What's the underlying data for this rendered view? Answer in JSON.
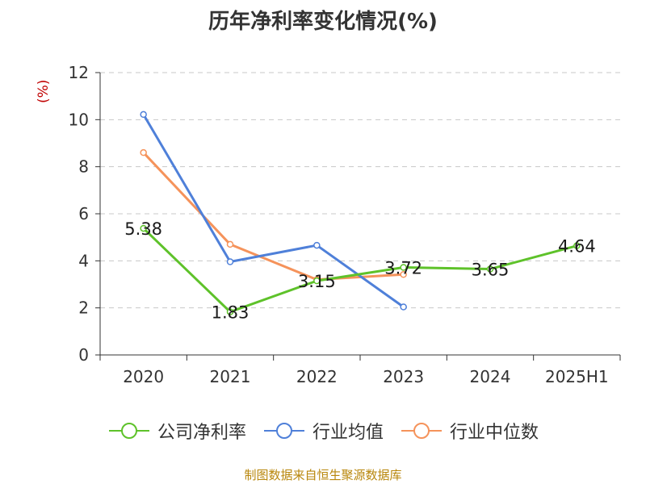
{
  "chart_data": {
    "type": "line",
    "title": "历年净利率变化情况(%)",
    "ylabel": "(%)",
    "xlabel": "",
    "categories": [
      "2020",
      "2021",
      "2022",
      "2023",
      "2024",
      "2025H1"
    ],
    "ylim": [
      0,
      12
    ],
    "yticks": [
      0,
      2,
      4,
      6,
      8,
      10,
      12
    ],
    "grid": true,
    "legend_position": "bottom",
    "series": [
      {
        "name": "公司净利率",
        "color": "#5ec22a",
        "values": [
          5.38,
          1.83,
          3.15,
          3.72,
          3.65,
          4.64
        ],
        "labels": [
          "5.38",
          "1.83",
          "3.15",
          "3.72",
          "3.65",
          "4.64"
        ]
      },
      {
        "name": "行业均值",
        "color": "#4f80d9",
        "values": [
          10.22,
          3.96,
          4.66,
          2.04,
          null,
          null
        ]
      },
      {
        "name": "行业中位数",
        "color": "#f5935b",
        "values": [
          8.6,
          4.7,
          3.2,
          3.42,
          null,
          null
        ]
      }
    ]
  },
  "source_text": "制图数据来自恒生聚源数据库"
}
